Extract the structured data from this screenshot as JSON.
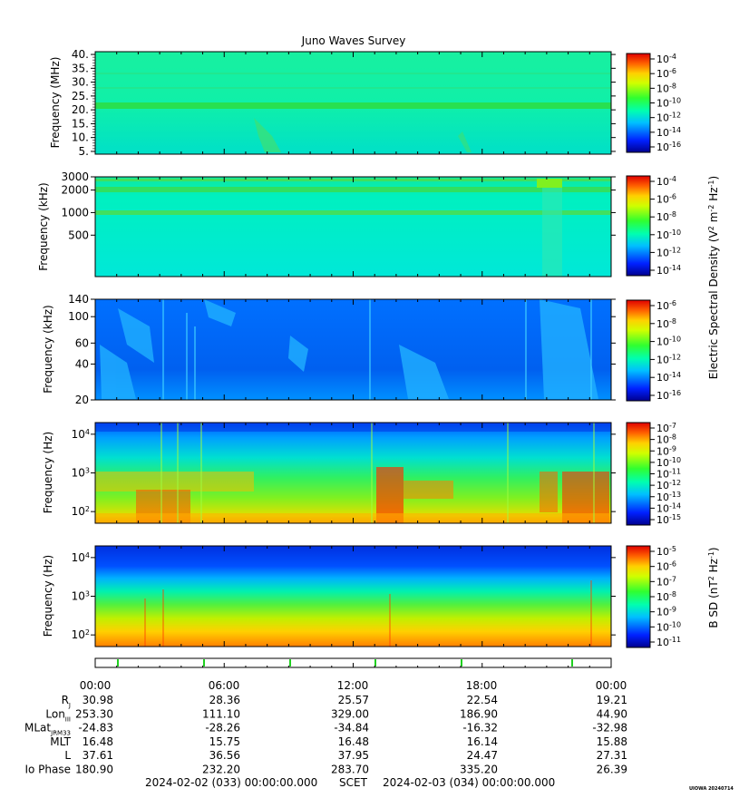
{
  "title": "Juno Waves Survey",
  "credit": "UIOWA 20240714",
  "chart_data": [
    {
      "type": "heatmap",
      "panel": 1,
      "ylabel": "Frequency (MHz)",
      "yscale": "linear",
      "ylim": [
        4.0,
        41.0
      ],
      "yticks": [
        "40.",
        "35.",
        "30.",
        "25.",
        "20.",
        "15.",
        "10.",
        "5."
      ],
      "colorbar": {
        "scale": "log",
        "exponents": [
          "-4",
          "-6",
          "-8",
          "-10",
          "-12",
          "-14",
          "-16"
        ]
      }
    },
    {
      "type": "heatmap",
      "panel": 2,
      "ylabel": "Frequency (kHz)",
      "yscale": "log",
      "ylim": [
        140,
        3000
      ],
      "yticks": [
        "3000",
        "2000",
        "1000",
        "500"
      ],
      "colorbar": {
        "scale": "log",
        "exponents": [
          "-4",
          "-6",
          "-8",
          "-10",
          "-12",
          "-14"
        ]
      }
    },
    {
      "type": "heatmap",
      "panel": 3,
      "ylabel": "Frequency (kHz)",
      "yscale": "log",
      "ylim": [
        20,
        140
      ],
      "yticks": [
        "140",
        "100",
        "60",
        "40",
        "20"
      ],
      "colorbar": {
        "scale": "log",
        "exponents": [
          "-6",
          "-8",
          "-10",
          "-12",
          "-14",
          "-16"
        ]
      }
    },
    {
      "type": "heatmap",
      "panel": 4,
      "ylabel": "Frequency (Hz)",
      "yscale": "log",
      "ylim": [
        50,
        20000
      ],
      "yticks": [
        "4",
        "3",
        "2"
      ],
      "colorbar": {
        "scale": "log",
        "exponents": [
          "-7",
          "-8",
          "-9",
          "-10",
          "-11",
          "-12",
          "-13",
          "-14",
          "-15"
        ]
      }
    },
    {
      "type": "heatmap",
      "panel": 5,
      "ylabel": "Frequency (Hz)",
      "yscale": "log",
      "ylim": [
        50,
        20000
      ],
      "yticks": [
        "4",
        "3",
        "2"
      ],
      "colorbar": {
        "scale": "log",
        "exponents": [
          "-5",
          "-6",
          "-7",
          "-8",
          "-9",
          "-10",
          "-11"
        ]
      }
    }
  ],
  "colorbar_labels": {
    "electric_base": "Electric Spectral Density (V",
    "electric_mid": " m",
    "electric_tail": " Hz",
    "magnetic_base": "B SD (nT",
    "magnetic_tail": " Hz",
    "sup2": "2",
    "supm2": "-2",
    "supm1": "-1",
    "ten": "10",
    "ten_base": "10"
  },
  "time_axis": {
    "labels": [
      "00:00",
      "06:00",
      "12:00",
      "18:00",
      "00:00"
    ]
  },
  "ephemeris": {
    "rows": [
      {
        "label": "R",
        "sub": "J",
        "values": [
          "30.98",
          "28.36",
          "25.57",
          "22.54",
          "19.21"
        ]
      },
      {
        "label": "Lon",
        "sub": "III",
        "values": [
          "253.30",
          "111.10",
          "329.00",
          "186.90",
          "44.90"
        ]
      },
      {
        "label": "MLat",
        "sub": "JRM33",
        "values": [
          "-24.83",
          "-28.26",
          "-34.84",
          "-16.32",
          "-32.98"
        ]
      },
      {
        "label": "MLT",
        "sub": "",
        "values": [
          "16.48",
          "15.75",
          "16.48",
          "16.14",
          "15.88"
        ]
      },
      {
        "label": "L",
        "sub": "",
        "values": [
          "37.61",
          "36.56",
          "37.95",
          "24.47",
          "27.31"
        ]
      },
      {
        "label": "Io Phase",
        "sub": "",
        "values": [
          "180.90",
          "232.20",
          "283.70",
          "335.20",
          "26.39"
        ]
      }
    ]
  },
  "footer": {
    "start": "2024-02-02 (033) 00:00:00.000",
    "label": "SCET",
    "end": "2024-02-03 (034) 00:00:00.000"
  }
}
